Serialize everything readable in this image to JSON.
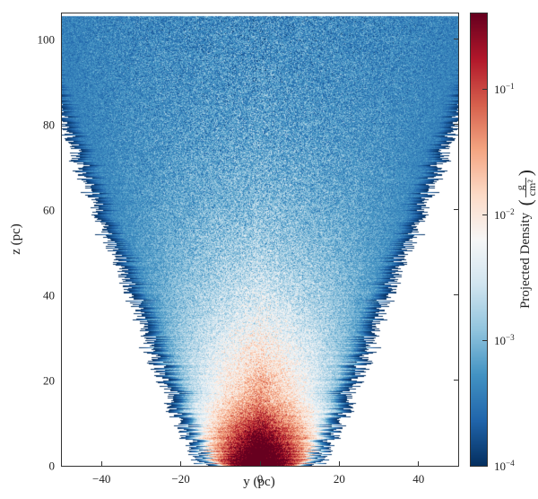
{
  "projection_plot": {
    "type": "heatmap",
    "xlabel": "y   (pc)",
    "ylabel": "z   (pc)",
    "label_fontsize": 15,
    "tick_fontsize": 13,
    "xlim": [
      -50,
      50
    ],
    "ylim": [
      0,
      106
    ],
    "xticks": [
      -40,
      -20,
      0,
      20,
      40
    ],
    "yticks": [
      0,
      20,
      40,
      60,
      80,
      100
    ],
    "background_color": "#ffffff",
    "axes_linecolor": "#333333"
  },
  "colorbar": {
    "label_prefix": "Projected Density",
    "unit_numerator": "g",
    "unit_denominator": "cm²",
    "scale": "log",
    "vmin_exp": -4,
    "vmax_exp": -0.4,
    "ticks_exp": [
      -4,
      -3,
      -2,
      -1
    ],
    "tick_labels": [
      "10⁻⁴",
      "10⁻³",
      "10⁻²",
      "10⁻¹"
    ],
    "colormap_name": "RdBu_r",
    "colormap_stops": [
      [
        0.0,
        "#053061"
      ],
      [
        0.1,
        "#2166ac"
      ],
      [
        0.2,
        "#4393c3"
      ],
      [
        0.3,
        "#92c5de"
      ],
      [
        0.4,
        "#d1e5f0"
      ],
      [
        0.5,
        "#f7f7f7"
      ],
      [
        0.6,
        "#fddbc7"
      ],
      [
        0.7,
        "#f4a582"
      ],
      [
        0.8,
        "#d6604d"
      ],
      [
        0.9,
        "#b2182b"
      ],
      [
        1.0,
        "#67001f"
      ]
    ]
  }
}
